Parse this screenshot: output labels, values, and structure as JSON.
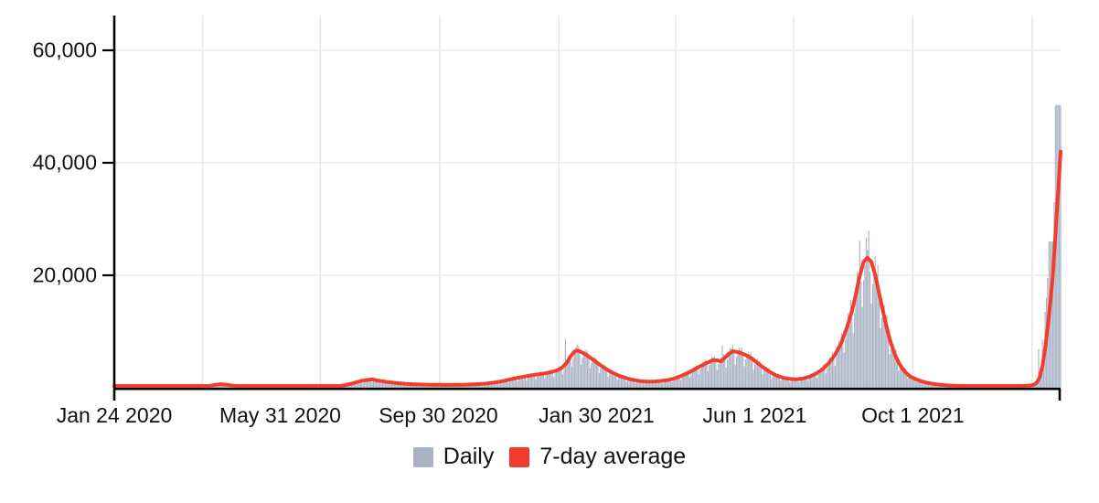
{
  "chart_data": {
    "type": "bar+line",
    "title": "",
    "description": "Daily values (bars) with 7-day average (line), Jan 24 2020 through late Jan 2022",
    "grid": true,
    "legend_position": "bottom",
    "x_axis": {
      "start_date": "Jan 24 2020",
      "domain_days": 730,
      "tick_labels": [
        {
          "day": 0,
          "label": "Jan 24 2020"
        },
        {
          "day": 128,
          "label": "May 31 2020"
        },
        {
          "day": 250,
          "label": "Sep 30 2020"
        },
        {
          "day": 372,
          "label": "Jan 30 2021"
        },
        {
          "day": 494,
          "label": "Jun 1 2021"
        },
        {
          "day": 616,
          "label": "Oct 1 2021"
        }
      ],
      "gridline_days": [
        68,
        159,
        251,
        343,
        433,
        524,
        616,
        708
      ]
    },
    "y_axis": {
      "max": 66000,
      "ticks": [
        {
          "value": 20000,
          "label": "20,000"
        },
        {
          "value": 40000,
          "label": "40,000"
        },
        {
          "value": 60000,
          "label": "60,000"
        }
      ]
    },
    "colors": {
      "axis": "#000000",
      "gridline": "#e8e8e8",
      "text": "#111111"
    },
    "series": [
      {
        "name": "Daily",
        "type": "bar",
        "color": "#aab4c6",
        "weekly_factors": [
          1.12,
          1.18,
          0.92,
          0.68,
          0.82,
          1.02,
          1.1
        ],
        "jitter_amp": 0.06,
        "overrides": {
          "348": 8700,
          "469": 7600,
          "575": 26100,
          "713": 6800,
          "716": 8600,
          "718": 13500,
          "719": 16000,
          "720": 19500,
          "721": 26000,
          "722": 26000,
          "723": 26000,
          "724": 26000,
          "725": 33000,
          "726": 50200,
          "727": 50300,
          "728": 50300,
          "729": 50200,
          "730": 50200
        }
      },
      {
        "name": "7-day average",
        "type": "line",
        "color": "#f23d2d",
        "points": [
          [
            0,
            2
          ],
          [
            15,
            5
          ],
          [
            25,
            10
          ],
          [
            35,
            18
          ],
          [
            45,
            30
          ],
          [
            55,
            42
          ],
          [
            62,
            62
          ],
          [
            67,
            95
          ],
          [
            71,
            190
          ],
          [
            75,
            400
          ],
          [
            79,
            560
          ],
          [
            82,
            640
          ],
          [
            86,
            570
          ],
          [
            90,
            430
          ],
          [
            95,
            280
          ],
          [
            100,
            175
          ],
          [
            105,
            110
          ],
          [
            110,
            70
          ],
          [
            116,
            45
          ],
          [
            122,
            35
          ],
          [
            130,
            40
          ],
          [
            138,
            46
          ],
          [
            146,
            56
          ],
          [
            153,
            68
          ],
          [
            159,
            85
          ],
          [
            165,
            135
          ],
          [
            170,
            210
          ],
          [
            175,
            330
          ],
          [
            180,
            570
          ],
          [
            185,
            850
          ],
          [
            190,
            1200
          ],
          [
            195,
            1390
          ],
          [
            199,
            1500
          ],
          [
            203,
            1300
          ],
          [
            207,
            1150
          ],
          [
            211,
            1010
          ],
          [
            216,
            880
          ],
          [
            221,
            760
          ],
          [
            227,
            665
          ],
          [
            233,
            605
          ],
          [
            239,
            565
          ],
          [
            245,
            535
          ],
          [
            251,
            515
          ],
          [
            257,
            505
          ],
          [
            263,
            515
          ],
          [
            269,
            540
          ],
          [
            275,
            590
          ],
          [
            281,
            655
          ],
          [
            287,
            745
          ],
          [
            293,
            920
          ],
          [
            299,
            1150
          ],
          [
            305,
            1470
          ],
          [
            311,
            1770
          ],
          [
            317,
            2020
          ],
          [
            323,
            2260
          ],
          [
            329,
            2450
          ],
          [
            335,
            2680
          ],
          [
            341,
            3050
          ],
          [
            345,
            3500
          ],
          [
            349,
            4400
          ],
          [
            352,
            5600
          ],
          [
            355,
            6450
          ],
          [
            357,
            6600
          ],
          [
            359,
            6500
          ],
          [
            362,
            6130
          ],
          [
            366,
            5560
          ],
          [
            371,
            4700
          ],
          [
            376,
            3850
          ],
          [
            381,
            3100
          ],
          [
            386,
            2500
          ],
          [
            391,
            2000
          ],
          [
            396,
            1640
          ],
          [
            401,
            1370
          ],
          [
            406,
            1170
          ],
          [
            411,
            1090
          ],
          [
            416,
            1110
          ],
          [
            421,
            1200
          ],
          [
            426,
            1340
          ],
          [
            431,
            1580
          ],
          [
            436,
            1980
          ],
          [
            441,
            2490
          ],
          [
            446,
            3060
          ],
          [
            451,
            3700
          ],
          [
            456,
            4300
          ],
          [
            461,
            4840
          ],
          [
            465,
            4900
          ],
          [
            468,
            4700
          ],
          [
            471,
            5330
          ],
          [
            474,
            6030
          ],
          [
            477,
            6480
          ],
          [
            480,
            6400
          ],
          [
            483,
            6190
          ],
          [
            486,
            5930
          ],
          [
            491,
            5350
          ],
          [
            496,
            4440
          ],
          [
            501,
            3550
          ],
          [
            506,
            2780
          ],
          [
            511,
            2160
          ],
          [
            516,
            1780
          ],
          [
            521,
            1570
          ],
          [
            526,
            1510
          ],
          [
            531,
            1630
          ],
          [
            536,
            1950
          ],
          [
            541,
            2470
          ],
          [
            546,
            3230
          ],
          [
            551,
            4330
          ],
          [
            556,
            5860
          ],
          [
            561,
            8050
          ],
          [
            565,
            10600
          ],
          [
            569,
            13600
          ],
          [
            572,
            16600
          ],
          [
            575,
            19800
          ],
          [
            578,
            22400
          ],
          [
            581,
            23100
          ],
          [
            584,
            22400
          ],
          [
            587,
            20000
          ],
          [
            590,
            16800
          ],
          [
            593,
            13600
          ],
          [
            596,
            10600
          ],
          [
            599,
            8000
          ],
          [
            602,
            6000
          ],
          [
            605,
            4500
          ],
          [
            608,
            3400
          ],
          [
            611,
            2600
          ],
          [
            614,
            2000
          ],
          [
            618,
            1560
          ],
          [
            622,
            1200
          ],
          [
            626,
            940
          ],
          [
            630,
            760
          ],
          [
            634,
            620
          ],
          [
            639,
            500
          ],
          [
            644,
            410
          ],
          [
            649,
            345
          ],
          [
            654,
            302
          ],
          [
            660,
            270
          ],
          [
            666,
            252
          ],
          [
            672,
            242
          ],
          [
            678,
            242
          ],
          [
            684,
            250
          ],
          [
            690,
            264
          ],
          [
            696,
            290
          ],
          [
            701,
            322
          ],
          [
            705,
            368
          ],
          [
            708,
            455
          ],
          [
            710,
            610
          ],
          [
            712,
            1020
          ],
          [
            714,
            1950
          ],
          [
            716,
            3900
          ],
          [
            718,
            6900
          ],
          [
            720,
            10600
          ],
          [
            722,
            15000
          ],
          [
            724,
            20000
          ],
          [
            726,
            27000
          ],
          [
            728,
            34500
          ],
          [
            730,
            42000
          ]
        ]
      }
    ]
  }
}
